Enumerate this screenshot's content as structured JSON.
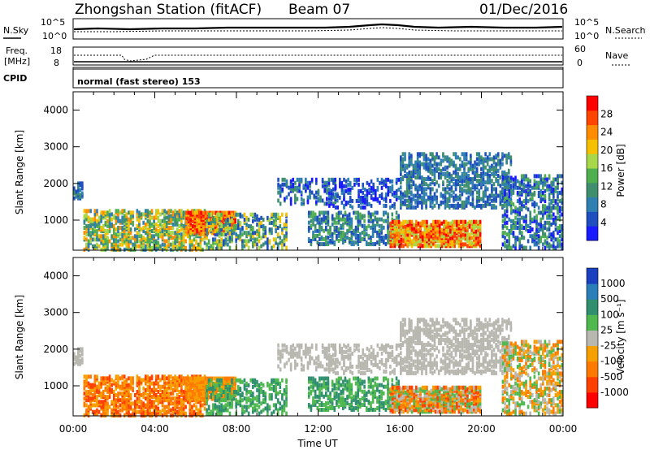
{
  "header": {
    "station": "Zhongshan Station (fitACF)",
    "beam": "Beam 07",
    "date": "01/Dec/2016"
  },
  "summary_panels": {
    "nsky_label": "N.Sky",
    "nsearch_label": "N.Search",
    "noise_ticks_left": [
      "10^5",
      "10^0"
    ],
    "noise_ticks_right": [
      "10^5",
      "10^0"
    ],
    "freq_label_1": "Freq.",
    "freq_label_2": "[MHz]",
    "freq_ticks": [
      "18",
      "8"
    ],
    "nave_label": "Nave",
    "nave_ticks": [
      "60",
      "0"
    ],
    "cpid_label": "CPID",
    "cpid_text": "normal (fast stereo) 153"
  },
  "colors": {
    "power_scale": [
      "#1a1aff",
      "#1f4fbf",
      "#2f7fb0",
      "#3f8f6f",
      "#4faf4f",
      "#a8d84a",
      "#f5c000",
      "#ff8c00",
      "#ff4500",
      "#ff0000"
    ],
    "velocity_scale": [
      "#1a3fbf",
      "#2b7fb8",
      "#2f8f6f",
      "#4fb84f",
      "#b8b8b0",
      "#f5a000",
      "#ff7a00",
      "#ff4000",
      "#ff0000"
    ]
  },
  "chart_data": [
    {
      "type": "heatmap",
      "title": "Power",
      "xlabel": "",
      "ylabel": "Slant Range [km]",
      "x_ticks": [
        "00:00",
        "04:00",
        "08:00",
        "12:00",
        "16:00",
        "20:00",
        "00:00"
      ],
      "y_ticks": [
        "1000",
        "2000",
        "3000",
        "4000"
      ],
      "ylim": [
        180,
        4500
      ],
      "colorbar_label": "Power [dB]",
      "colorbar_ticks": [
        "4",
        "8",
        "12",
        "16",
        "20",
        "24",
        "28"
      ],
      "colorbar_range": [
        0,
        32
      ]
    },
    {
      "type": "heatmap",
      "title": "Velocity",
      "xlabel": "Time UT",
      "ylabel": "Slant Range [km]",
      "x_ticks": [
        "00:00",
        "04:00",
        "08:00",
        "12:00",
        "16:00",
        "20:00",
        "00:00"
      ],
      "y_ticks": [
        "1000",
        "2000",
        "3000",
        "4000"
      ],
      "ylim": [
        180,
        4500
      ],
      "colorbar_label": "Velocity [m s⁻¹]",
      "colorbar_ticks": [
        "1000",
        "500",
        "100",
        "25",
        "-25",
        "-100",
        "-500",
        "-1000"
      ]
    }
  ]
}
